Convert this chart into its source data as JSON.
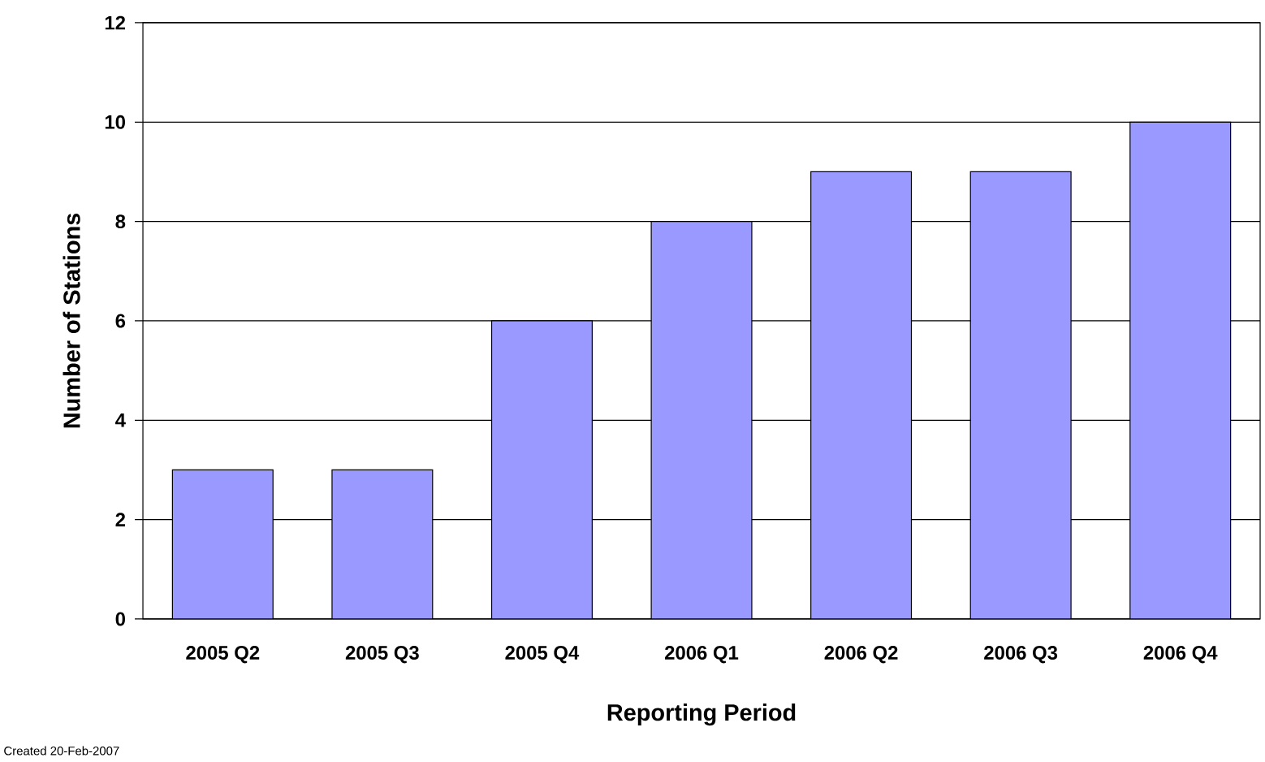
{
  "chart_data": {
    "type": "bar",
    "categories": [
      "2005 Q2",
      "2005 Q3",
      "2005 Q4",
      "2006 Q1",
      "2006 Q2",
      "2006 Q3",
      "2006 Q4"
    ],
    "values": [
      3,
      3,
      6,
      8,
      9,
      9,
      10
    ],
    "color": "#9999ff",
    "xlabel": "Reporting Period",
    "ylabel": "Number of Stations",
    "ylim": [
      0,
      12
    ],
    "yticks": [
      0,
      2,
      4,
      6,
      8,
      10,
      12
    ],
    "grid": "y",
    "annotations": [
      "Created 20-Feb-2007"
    ]
  }
}
